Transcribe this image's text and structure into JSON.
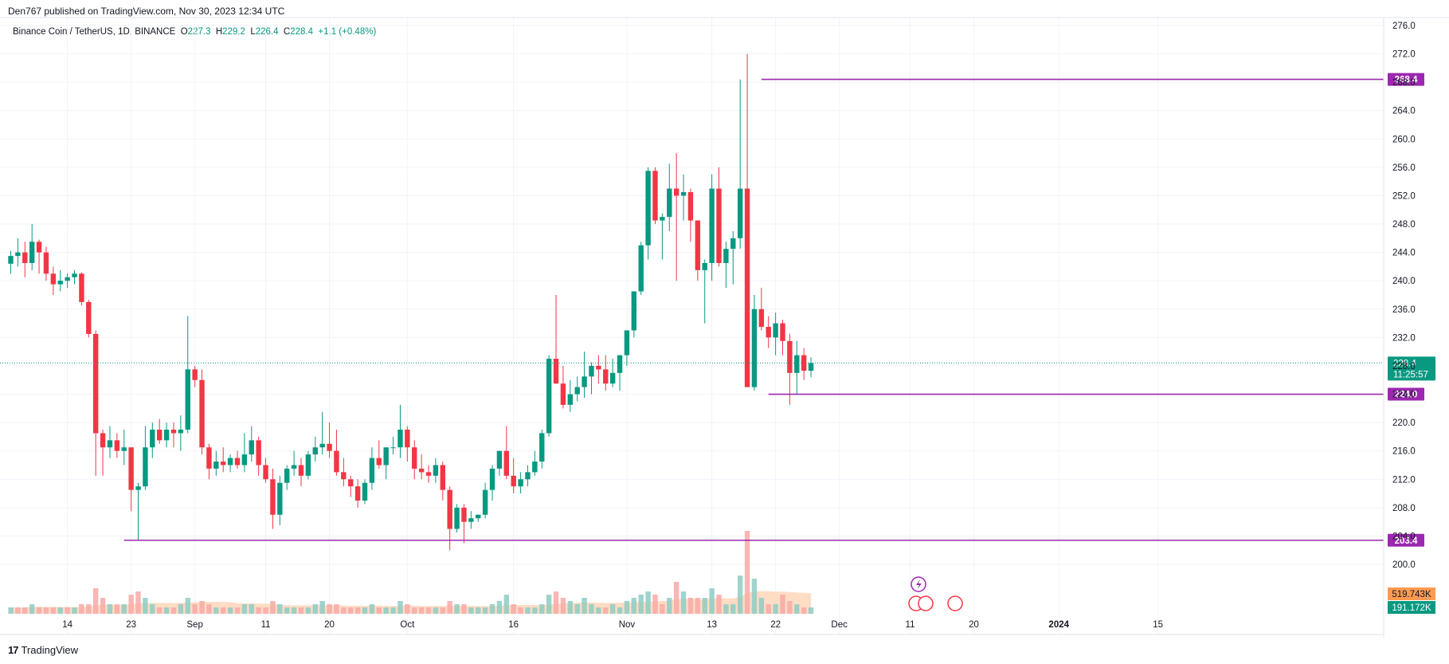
{
  "header": {
    "published": "Den767 published on TradingView.com, Nov 30, 2023 12:34 UTC"
  },
  "legend": {
    "symbol": "Binance Coin / TetherUS, 1D, BINANCE",
    "o_label": "O",
    "o": "227.3",
    "h_label": "H",
    "h": "229.2",
    "l_label": "L",
    "l": "226.4",
    "c_label": "C",
    "c": "228.4",
    "change": "+1.1 (+0.48%)"
  },
  "footer": {
    "brand": "TradingView",
    "brand_mark": "17"
  },
  "colors": {
    "up": "#089981",
    "down": "#f23645",
    "level": "#9c27b0",
    "vol_up": "#8ecdc4",
    "vol_down": "#f7a9a7",
    "vol_ma": "#ffd0b0"
  },
  "chart_data": {
    "type": "candlestick",
    "y_range": [
      196,
      277
    ],
    "y_ticks": [
      "276.0",
      "272.0",
      "268.0",
      "264.0",
      "260.0",
      "256.0",
      "252.0",
      "248.0",
      "244.0",
      "240.0",
      "236.0",
      "232.0",
      "228.0",
      "224.0",
      "220.0",
      "216.0",
      "212.0",
      "208.0",
      "204.0",
      "200.0"
    ],
    "x_ticks": [
      {
        "label": "14",
        "date": "2023-08-14"
      },
      {
        "label": "23",
        "date": "2023-08-23"
      },
      {
        "label": "Sep",
        "date": "2023-09-01"
      },
      {
        "label": "11",
        "date": "2023-09-11"
      },
      {
        "label": "20",
        "date": "2023-09-20"
      },
      {
        "label": "Oct",
        "date": "2023-10-01"
      },
      {
        "label": "16",
        "date": "2023-10-16"
      },
      {
        "label": "Nov",
        "date": "2023-11-01"
      },
      {
        "label": "13",
        "date": "2023-11-13"
      },
      {
        "label": "22",
        "date": "2023-11-22"
      },
      {
        "label": "Dec",
        "date": "2023-12-01"
      },
      {
        "label": "11",
        "date": "2023-12-11"
      },
      {
        "label": "20",
        "date": "2023-12-20"
      },
      {
        "label": "2024",
        "date": "2024-01-01"
      },
      {
        "label": "15",
        "date": "2024-01-15"
      }
    ],
    "price_levels": [
      {
        "label": "268.4",
        "value": 268.4,
        "from": "2023-11-20"
      },
      {
        "label": "224.0",
        "value": 224.0,
        "from": "2023-11-21"
      },
      {
        "label": "203.4",
        "value": 203.4,
        "from": "2023-08-22"
      }
    ],
    "current_price": {
      "label": "228.4",
      "value": 228.4,
      "countdown": "11:25:57"
    },
    "volume_labels": [
      {
        "label": "519.743K",
        "kind": "ma"
      },
      {
        "label": "191.172K",
        "kind": "volume"
      }
    ],
    "start_date": "2023-08-06",
    "end_date": "2023-11-30",
    "candles_ohlc": [
      [
        242.4,
        244.2,
        241.0,
        243.5
      ],
      [
        243.5,
        246.0,
        242.0,
        244.0
      ],
      [
        244.0,
        245.5,
        240.5,
        242.5
      ],
      [
        242.5,
        248.0,
        241.5,
        245.5
      ],
      [
        245.5,
        245.8,
        241.0,
        244.0
      ],
      [
        244.0,
        244.8,
        240.0,
        241.0
      ],
      [
        241.0,
        242.0,
        238.0,
        239.5
      ],
      [
        239.5,
        241.5,
        238.5,
        240.0
      ],
      [
        240.0,
        241.0,
        239.0,
        240.5
      ],
      [
        240.5,
        241.5,
        239.5,
        241.0
      ],
      [
        241.0,
        241.2,
        236.5,
        237.0
      ],
      [
        237.0,
        237.3,
        232.0,
        232.5
      ],
      [
        232.5,
        233.0,
        212.5,
        218.5
      ],
      [
        218.5,
        219.0,
        212.5,
        216.5
      ],
      [
        216.5,
        219.5,
        215.0,
        217.5
      ],
      [
        217.5,
        218.5,
        215.0,
        216.0
      ],
      [
        216.0,
        219.0,
        214.0,
        216.5
      ],
      [
        216.5,
        216.5,
        207.5,
        210.5
      ],
      [
        210.5,
        211.5,
        203.4,
        211.0
      ],
      [
        211.0,
        219.5,
        210.5,
        216.5
      ],
      [
        216.5,
        220.0,
        215.0,
        219.0
      ],
      [
        219.0,
        220.5,
        217.0,
        217.5
      ],
      [
        217.5,
        220.0,
        216.5,
        219.0
      ],
      [
        219.0,
        220.0,
        216.5,
        218.5
      ],
      [
        218.5,
        221.0,
        216.0,
        219.0
      ],
      [
        219.0,
        235.0,
        218.5,
        227.5
      ],
      [
        227.5,
        228.0,
        225.0,
        226.0
      ],
      [
        226.0,
        227.5,
        215.5,
        216.5
      ],
      [
        216.5,
        217.0,
        212.0,
        213.5
      ],
      [
        213.5,
        216.0,
        212.5,
        214.5
      ],
      [
        214.5,
        216.5,
        213.0,
        214.0
      ],
      [
        214.0,
        215.5,
        213.0,
        215.0
      ],
      [
        215.0,
        216.0,
        213.5,
        214.0
      ],
      [
        214.0,
        218.5,
        213.0,
        215.5
      ],
      [
        215.5,
        219.5,
        214.5,
        217.5
      ],
      [
        217.5,
        218.0,
        212.5,
        214.0
      ],
      [
        214.0,
        215.0,
        211.5,
        212.0
      ],
      [
        212.0,
        213.5,
        205.0,
        207.0
      ],
      [
        207.0,
        212.5,
        205.5,
        211.5
      ],
      [
        211.5,
        214.0,
        210.5,
        213.5
      ],
      [
        213.5,
        216.0,
        212.5,
        214.0
      ],
      [
        214.0,
        215.0,
        211.0,
        212.5
      ],
      [
        212.5,
        216.0,
        212.0,
        215.5
      ],
      [
        215.5,
        218.0,
        214.5,
        216.5
      ],
      [
        216.5,
        221.5,
        215.5,
        217.0
      ],
      [
        217.0,
        220.0,
        215.0,
        216.0
      ],
      [
        216.0,
        219.0,
        212.5,
        213.0
      ],
      [
        213.0,
        215.0,
        211.0,
        212.0
      ],
      [
        212.0,
        212.5,
        209.5,
        211.0
      ],
      [
        211.0,
        212.0,
        208.0,
        209.0
      ],
      [
        209.0,
        212.0,
        208.5,
        211.5
      ],
      [
        211.5,
        216.5,
        210.5,
        215.0
      ],
      [
        215.0,
        217.5,
        213.5,
        214.0
      ],
      [
        214.0,
        216.5,
        212.0,
        216.5
      ],
      [
        216.5,
        218.0,
        215.5,
        216.5
      ],
      [
        216.5,
        222.5,
        215.0,
        219.0
      ],
      [
        219.0,
        219.5,
        214.5,
        216.5
      ],
      [
        216.5,
        217.5,
        212.0,
        213.5
      ],
      [
        213.5,
        215.5,
        212.0,
        213.0
      ],
      [
        213.0,
        214.0,
        211.5,
        212.5
      ],
      [
        212.5,
        215.0,
        211.5,
        214.0
      ],
      [
        214.0,
        214.5,
        209.0,
        210.5
      ],
      [
        210.5,
        211.0,
        202.0,
        205.0
      ],
      [
        205.0,
        208.5,
        204.5,
        208.0
      ],
      [
        208.0,
        208.5,
        203.0,
        206.0
      ],
      [
        206.0,
        207.5,
        205.0,
        206.5
      ],
      [
        206.5,
        207.0,
        206.0,
        207.0
      ],
      [
        207.0,
        211.5,
        206.5,
        210.5
      ],
      [
        210.5,
        214.0,
        209.0,
        213.5
      ],
      [
        213.5,
        216.0,
        212.5,
        216.0
      ],
      [
        216.0,
        219.5,
        212.0,
        212.5
      ],
      [
        212.5,
        215.0,
        210.0,
        211.0
      ],
      [
        211.0,
        213.0,
        210.0,
        212.0
      ],
      [
        212.0,
        214.0,
        211.0,
        213.0
      ],
      [
        213.0,
        216.0,
        212.5,
        214.5
      ],
      [
        214.5,
        219.0,
        213.5,
        218.5
      ],
      [
        218.5,
        229.5,
        218.0,
        229.0
      ],
      [
        229.0,
        238.0,
        225.5,
        225.5
      ],
      [
        225.5,
        228.0,
        222.0,
        222.5
      ],
      [
        222.5,
        226.0,
        221.5,
        224.0
      ],
      [
        224.0,
        226.5,
        223.0,
        225.0
      ],
      [
        225.0,
        230.0,
        223.5,
        226.5
      ],
      [
        226.5,
        228.5,
        224.0,
        228.0
      ],
      [
        228.0,
        229.5,
        225.5,
        227.5
      ],
      [
        227.5,
        229.5,
        224.5,
        225.5
      ],
      [
        225.5,
        229.0,
        225.0,
        227.0
      ],
      [
        227.0,
        229.5,
        224.5,
        229.5
      ],
      [
        229.5,
        233.0,
        228.0,
        233.0
      ],
      [
        233.0,
        237.5,
        232.0,
        238.5
      ],
      [
        238.5,
        245.5,
        238.0,
        245.0
      ],
      [
        245.0,
        256.0,
        243.0,
        255.5
      ],
      [
        255.5,
        256.0,
        248.0,
        248.5
      ],
      [
        248.5,
        249.5,
        243.0,
        249.0
      ],
      [
        249.0,
        256.5,
        247.0,
        253.0
      ],
      [
        253.0,
        258.0,
        240.0,
        252.0
      ],
      [
        252.0,
        255.0,
        248.5,
        252.5
      ],
      [
        252.5,
        253.0,
        245.5,
        248.5
      ],
      [
        248.5,
        248.5,
        240.0,
        241.5
      ],
      [
        241.5,
        243.0,
        234.0,
        242.5
      ],
      [
        242.5,
        255.0,
        240.0,
        253.0
      ],
      [
        253.0,
        256.0,
        242.0,
        242.5
      ],
      [
        242.5,
        245.5,
        239.0,
        244.5
      ],
      [
        244.5,
        247.0,
        239.5,
        246.0
      ],
      [
        246.0,
        268.4,
        244.5,
        253.0
      ],
      [
        253.0,
        272.0,
        225.0,
        225.0
      ],
      [
        225.0,
        238.0,
        224.5,
        236.0
      ],
      [
        236.0,
        239.0,
        233.0,
        233.5
      ],
      [
        233.5,
        235.0,
        230.5,
        232.0
      ],
      [
        232.0,
        235.5,
        229.5,
        234.0
      ],
      [
        234.0,
        234.5,
        229.5,
        231.5
      ],
      [
        231.5,
        232.5,
        222.5,
        227.0
      ],
      [
        227.0,
        231.5,
        224.0,
        229.5
      ],
      [
        229.5,
        230.5,
        226.0,
        227.3
      ],
      [
        227.3,
        229.2,
        226.4,
        228.4
      ]
    ],
    "volume": [
      [
        2,
        "up"
      ],
      [
        2,
        "down"
      ],
      [
        2,
        "down"
      ],
      [
        3,
        "up"
      ],
      [
        2,
        "down"
      ],
      [
        2,
        "down"
      ],
      [
        2,
        "down"
      ],
      [
        2,
        "up"
      ],
      [
        2,
        "down"
      ],
      [
        2,
        "up"
      ],
      [
        3,
        "down"
      ],
      [
        3,
        "down"
      ],
      [
        8,
        "down"
      ],
      [
        5,
        "down"
      ],
      [
        3,
        "up"
      ],
      [
        3,
        "down"
      ],
      [
        3,
        "up"
      ],
      [
        6,
        "down"
      ],
      [
        7,
        "down"
      ],
      [
        5,
        "up"
      ],
      [
        3,
        "up"
      ],
      [
        2,
        "down"
      ],
      [
        2,
        "up"
      ],
      [
        2,
        "down"
      ],
      [
        3,
        "up"
      ],
      [
        5,
        "up"
      ],
      [
        3,
        "down"
      ],
      [
        4,
        "down"
      ],
      [
        3,
        "down"
      ],
      [
        2,
        "up"
      ],
      [
        2,
        "down"
      ],
      [
        2,
        "up"
      ],
      [
        2,
        "down"
      ],
      [
        3,
        "up"
      ],
      [
        3,
        "up"
      ],
      [
        2,
        "down"
      ],
      [
        2,
        "down"
      ],
      [
        4,
        "down"
      ],
      [
        3,
        "up"
      ],
      [
        2,
        "up"
      ],
      [
        2,
        "up"
      ],
      [
        2,
        "down"
      ],
      [
        2,
        "up"
      ],
      [
        3,
        "up"
      ],
      [
        4,
        "up"
      ],
      [
        3,
        "down"
      ],
      [
        3,
        "down"
      ],
      [
        2,
        "down"
      ],
      [
        2,
        "down"
      ],
      [
        2,
        "down"
      ],
      [
        2,
        "up"
      ],
      [
        3,
        "up"
      ],
      [
        2,
        "down"
      ],
      [
        2,
        "up"
      ],
      [
        2,
        "up"
      ],
      [
        4,
        "up"
      ],
      [
        3,
        "down"
      ],
      [
        2,
        "down"
      ],
      [
        2,
        "down"
      ],
      [
        2,
        "down"
      ],
      [
        2,
        "up"
      ],
      [
        2,
        "down"
      ],
      [
        4,
        "down"
      ],
      [
        3,
        "up"
      ],
      [
        3,
        "down"
      ],
      [
        2,
        "up"
      ],
      [
        2,
        "up"
      ],
      [
        2,
        "up"
      ],
      [
        3,
        "up"
      ],
      [
        4,
        "up"
      ],
      [
        6,
        "up"
      ],
      [
        3,
        "down"
      ],
      [
        2,
        "down"
      ],
      [
        2,
        "up"
      ],
      [
        2,
        "up"
      ],
      [
        3,
        "up"
      ],
      [
        6,
        "up"
      ],
      [
        7,
        "down"
      ],
      [
        5,
        "down"
      ],
      [
        4,
        "up"
      ],
      [
        3,
        "up"
      ],
      [
        5,
        "up"
      ],
      [
        3,
        "up"
      ],
      [
        2,
        "up"
      ],
      [
        2,
        "down"
      ],
      [
        3,
        "up"
      ],
      [
        2,
        "up"
      ],
      [
        4,
        "up"
      ],
      [
        5,
        "up"
      ],
      [
        6,
        "up"
      ],
      [
        7,
        "up"
      ],
      [
        6,
        "down"
      ],
      [
        3,
        "down"
      ],
      [
        5,
        "up"
      ],
      [
        10,
        "down"
      ],
      [
        7,
        "up"
      ],
      [
        5,
        "down"
      ],
      [
        5,
        "down"
      ],
      [
        5,
        "up"
      ],
      [
        8,
        "up"
      ],
      [
        6,
        "down"
      ],
      [
        3,
        "up"
      ],
      [
        3,
        "up"
      ],
      [
        12,
        "up"
      ],
      [
        26,
        "down"
      ],
      [
        11,
        "up"
      ],
      [
        5,
        "up"
      ],
      [
        3,
        "down"
      ],
      [
        3,
        "up"
      ],
      [
        6,
        "down"
      ],
      [
        4,
        "down"
      ],
      [
        3,
        "up"
      ],
      [
        2,
        "down"
      ],
      [
        2,
        "up"
      ]
    ]
  }
}
